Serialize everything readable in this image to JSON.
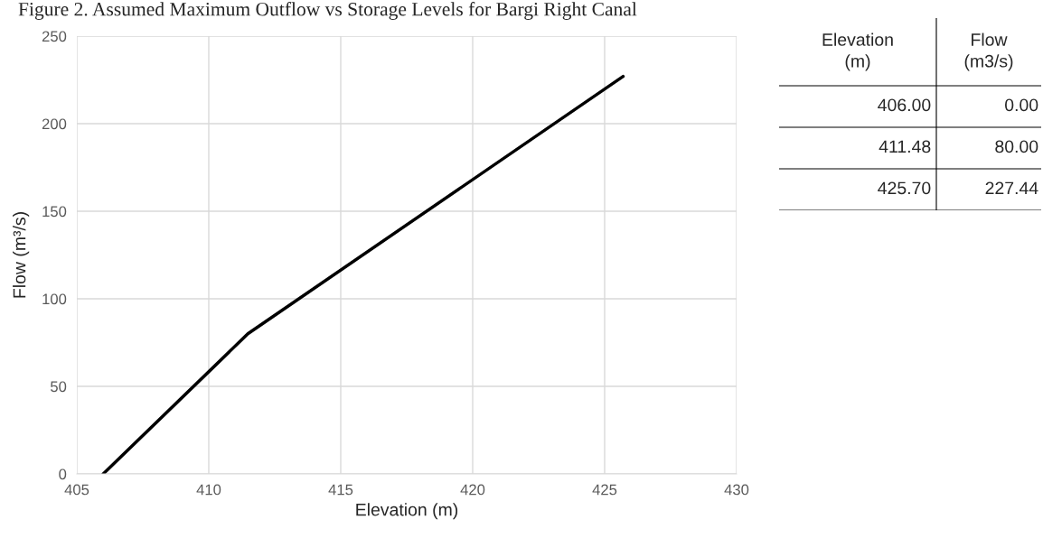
{
  "chart_data": [
    {
      "type": "line",
      "title": "Figure 2. Assumed Maximum Outflow vs Storage Levels for Bargi Right Canal",
      "xlabel": "Elevation (m)",
      "ylabel": "Flow (m³/s)",
      "x": [
        406.0,
        411.48,
        425.7
      ],
      "series": [
        {
          "color": "#000000",
          "values": [
            0,
            80,
            227
          ]
        }
      ],
      "xlim": [
        405,
        430
      ],
      "xticks": [
        405,
        410,
        415,
        420,
        425,
        430
      ],
      "ylim": [
        0,
        250
      ],
      "yticks": [
        0,
        50,
        100,
        150,
        200,
        250
      ],
      "grid": true,
      "marker": "none",
      "line_style": "solid"
    },
    {
      "type": "other",
      "annotations": [
        "Elevation (m)",
        "Flow (m3/s)",
        "406.00",
        "0.00",
        "411.48",
        "80.00",
        "425.70",
        "227.44"
      ]
    }
  ]
}
